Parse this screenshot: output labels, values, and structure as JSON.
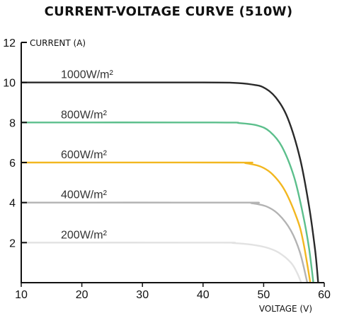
{
  "chart_data": {
    "type": "line",
    "title": "CURRENT-VOLTAGE CURVE (510W)",
    "xlabel": "VOLTAGE (V)",
    "ylabel": "CURRENT (A)",
    "xlim": [
      10,
      60
    ],
    "ylim": [
      0,
      12
    ],
    "xticks": [
      "10",
      "20",
      "30",
      "40",
      "50",
      "60"
    ],
    "yticks": [
      "2",
      "4",
      "6",
      "8",
      "10",
      "12"
    ],
    "grid": false,
    "series": [
      {
        "name": "1000W/m²",
        "color": "#2a2a2a",
        "points": [
          [
            10,
            10
          ],
          [
            40,
            10
          ],
          [
            45,
            9.98
          ],
          [
            48,
            9.9
          ],
          [
            50,
            9.75
          ],
          [
            52,
            9.25
          ],
          [
            54,
            8.2
          ],
          [
            56,
            6.2
          ],
          [
            57.5,
            3.8
          ],
          [
            58.5,
            1.6
          ],
          [
            59,
            0
          ]
        ]
      },
      {
        "name": "800W/m²",
        "color": "#5cbf8c",
        "points": [
          [
            10,
            8
          ],
          [
            42,
            8
          ],
          [
            46,
            7.97
          ],
          [
            49,
            7.85
          ],
          [
            51,
            7.55
          ],
          [
            53,
            6.8
          ],
          [
            55,
            5.3
          ],
          [
            56.5,
            3.4
          ],
          [
            57.5,
            1.7
          ],
          [
            58.2,
            0
          ]
        ]
      },
      {
        "name": "600W/m²",
        "color": "#f2b720",
        "points": [
          [
            10,
            6
          ],
          [
            45,
            6
          ],
          [
            47,
            5.97
          ],
          [
            49.5,
            5.8
          ],
          [
            51.5,
            5.4
          ],
          [
            53.5,
            4.6
          ],
          [
            55.5,
            3.2
          ],
          [
            56.5,
            2.1
          ],
          [
            57.7,
            0
          ]
        ]
      },
      {
        "name": "400W/m²",
        "color": "#b3b3b3",
        "points": [
          [
            10,
            4
          ],
          [
            46,
            4
          ],
          [
            48,
            3.97
          ],
          [
            50.5,
            3.8
          ],
          [
            52.5,
            3.4
          ],
          [
            54.5,
            2.6
          ],
          [
            56,
            1.5
          ],
          [
            57.2,
            0
          ]
        ]
      },
      {
        "name": "200W/m²",
        "color": "#e2e2e2",
        "points": [
          [
            10,
            2
          ],
          [
            42,
            2
          ],
          [
            45,
            1.98
          ],
          [
            48,
            1.9
          ],
          [
            50.5,
            1.75
          ],
          [
            52.5,
            1.5
          ],
          [
            54.5,
            1.0
          ],
          [
            55.5,
            0.5
          ],
          [
            56.2,
            0
          ]
        ]
      }
    ]
  }
}
